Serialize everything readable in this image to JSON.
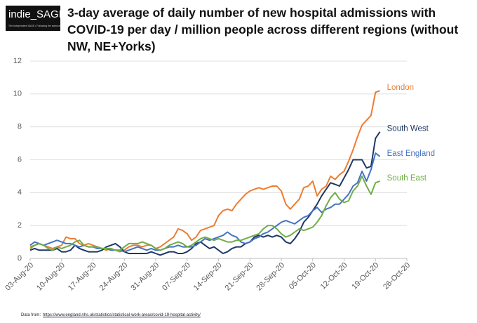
{
  "chart_data": {
    "type": "line",
    "logo": "indie_SAGE",
    "logo_tagline": "The Independent SAGE • Following the science",
    "title": "3-day average of daily number of new hospital admissions with COVID-19 per day / million people across different regions (without NW, NE+Yorks)",
    "source_label": "Data from:",
    "source_url": "https://www.england.nhs.uk/statistics/statistical-work-areas/covid-19-hospital-activity/",
    "x": [
      "2020-08-03",
      "2020-08-04",
      "2020-08-05",
      "2020-08-06",
      "2020-08-07",
      "2020-08-08",
      "2020-08-09",
      "2020-08-10",
      "2020-08-11",
      "2020-08-12",
      "2020-08-13",
      "2020-08-14",
      "2020-08-15",
      "2020-08-16",
      "2020-08-17",
      "2020-08-18",
      "2020-08-19",
      "2020-08-20",
      "2020-08-21",
      "2020-08-22",
      "2020-08-23",
      "2020-08-24",
      "2020-08-25",
      "2020-08-26",
      "2020-08-27",
      "2020-08-28",
      "2020-08-29",
      "2020-08-30",
      "2020-08-31",
      "2020-09-01",
      "2020-09-02",
      "2020-09-03",
      "2020-09-04",
      "2020-09-05",
      "2020-09-06",
      "2020-09-07",
      "2020-09-08",
      "2020-09-09",
      "2020-09-10",
      "2020-09-11",
      "2020-09-12",
      "2020-09-13",
      "2020-09-14",
      "2020-09-15",
      "2020-09-16",
      "2020-09-17",
      "2020-09-18",
      "2020-09-19",
      "2020-09-20",
      "2020-09-21",
      "2020-09-22",
      "2020-09-23",
      "2020-09-24",
      "2020-09-25",
      "2020-09-26",
      "2020-09-27",
      "2020-09-28",
      "2020-09-29",
      "2020-09-30",
      "2020-10-01",
      "2020-10-02",
      "2020-10-03",
      "2020-10-04",
      "2020-10-05",
      "2020-10-06",
      "2020-10-07",
      "2020-10-08",
      "2020-10-09",
      "2020-10-10",
      "2020-10-11",
      "2020-10-12",
      "2020-10-13",
      "2020-10-14",
      "2020-10-15",
      "2020-10-16",
      "2020-10-17",
      "2020-10-18",
      "2020-10-19",
      "2020-10-20"
    ],
    "series": [
      {
        "name": "London",
        "color": "#ed7d31",
        "values": [
          0.7,
          0.8,
          0.9,
          0.8,
          0.7,
          0.6,
          0.7,
          0.8,
          1.3,
          1.2,
          1.2,
          0.9,
          0.8,
          0.9,
          0.8,
          0.7,
          0.6,
          0.5,
          0.6,
          0.5,
          0.4,
          0.5,
          0.7,
          0.8,
          0.8,
          0.7,
          0.8,
          0.8,
          0.6,
          0.7,
          0.9,
          1.1,
          1.3,
          1.8,
          1.7,
          1.5,
          1.1,
          1.3,
          1.7,
          1.8,
          1.9,
          2.0,
          2.6,
          2.9,
          3.0,
          2.9,
          3.3,
          3.6,
          3.9,
          4.1,
          4.2,
          4.3,
          4.2,
          4.3,
          4.4,
          4.4,
          4.1,
          3.3,
          3.0,
          3.3,
          3.6,
          4.3,
          4.4,
          4.7,
          3.8,
          4.2,
          4.4,
          5.0,
          4.8,
          5.1,
          5.3,
          5.9,
          6.6,
          7.4,
          8.1,
          8.4,
          8.7,
          10.1,
          10.2
        ]
      },
      {
        "name": "South West",
        "color": "#1f3864",
        "values": [
          0.5,
          0.6,
          0.5,
          0.5,
          0.5,
          0.5,
          0.6,
          0.4,
          0.4,
          0.5,
          0.8,
          0.6,
          0.5,
          0.4,
          0.4,
          0.4,
          0.5,
          0.7,
          0.8,
          0.9,
          0.7,
          0.4,
          0.3,
          0.3,
          0.3,
          0.3,
          0.3,
          0.4,
          0.3,
          0.2,
          0.3,
          0.4,
          0.4,
          0.3,
          0.3,
          0.4,
          0.6,
          0.9,
          1.0,
          0.8,
          0.6,
          0.7,
          0.5,
          0.3,
          0.4,
          0.6,
          0.7,
          0.7,
          0.9,
          1.0,
          1.3,
          1.4,
          1.3,
          1.4,
          1.3,
          1.4,
          1.3,
          1.0,
          0.9,
          1.2,
          1.6,
          2.2,
          2.5,
          2.9,
          3.3,
          3.8,
          4.2,
          4.6,
          4.5,
          4.4,
          4.9,
          5.4,
          6.0,
          6.0,
          6.0,
          5.5,
          5.6,
          7.3,
          7.7
        ]
      },
      {
        "name": "East England",
        "color": "#4472c4",
        "values": [
          0.8,
          1.0,
          0.9,
          0.8,
          0.9,
          1.0,
          1.1,
          1.0,
          0.9,
          0.9,
          0.8,
          0.7,
          0.8,
          0.7,
          0.7,
          0.6,
          0.6,
          0.6,
          0.5,
          0.5,
          0.5,
          0.4,
          0.5,
          0.6,
          0.7,
          0.6,
          0.5,
          0.6,
          0.5,
          0.5,
          0.6,
          0.7,
          0.7,
          0.8,
          0.7,
          0.7,
          0.7,
          0.8,
          1.0,
          1.2,
          1.1,
          1.2,
          1.3,
          1.4,
          1.6,
          1.4,
          1.3,
          1.0,
          0.9,
          1.0,
          1.2,
          1.3,
          1.5,
          1.6,
          1.8,
          2.0,
          2.2,
          2.3,
          2.2,
          2.1,
          2.3,
          2.5,
          2.6,
          2.9,
          3.1,
          2.8,
          3.0,
          3.1,
          3.3,
          3.3,
          3.6,
          3.9,
          4.4,
          4.6,
          5.3,
          4.7,
          5.4,
          6.4,
          6.2
        ]
      },
      {
        "name": "South East",
        "color": "#70ad47",
        "values": [
          0.6,
          0.8,
          0.9,
          0.8,
          0.6,
          0.5,
          0.7,
          0.6,
          0.7,
          0.8,
          1.0,
          1.1,
          0.8,
          0.7,
          0.7,
          0.7,
          0.6,
          0.6,
          0.6,
          0.5,
          0.5,
          0.7,
          0.9,
          0.9,
          0.9,
          1.0,
          0.9,
          0.8,
          0.6,
          0.5,
          0.6,
          0.8,
          0.9,
          1.0,
          0.9,
          0.7,
          0.8,
          1.0,
          1.2,
          1.3,
          1.2,
          1.1,
          1.2,
          1.1,
          1.0,
          1.0,
          1.1,
          1.1,
          1.2,
          1.3,
          1.4,
          1.5,
          1.8,
          2.0,
          2.0,
          1.8,
          1.5,
          1.3,
          1.4,
          1.6,
          1.8,
          1.7,
          1.8,
          1.9,
          2.2,
          2.6,
          3.2,
          3.7,
          4.0,
          3.6,
          3.4,
          3.5,
          4.1,
          4.4,
          5.0,
          4.4,
          3.9,
          4.6,
          4.7
        ]
      }
    ],
    "xlim": [
      "2020-08-03",
      "2020-10-26"
    ],
    "xticks": [
      {
        "value": "2020-08-03",
        "label": "03-Aug-20"
      },
      {
        "value": "2020-08-10",
        "label": "10-Aug-20"
      },
      {
        "value": "2020-08-17",
        "label": "17-Aug-20"
      },
      {
        "value": "2020-08-24",
        "label": "24-Aug-20"
      },
      {
        "value": "2020-08-31",
        "label": "31-Aug-20"
      },
      {
        "value": "2020-09-07",
        "label": "07-Sep-20"
      },
      {
        "value": "2020-09-14",
        "label": "14-Sep-20"
      },
      {
        "value": "2020-09-21",
        "label": "21-Sep-20"
      },
      {
        "value": "2020-09-28",
        "label": "28-Sep-20"
      },
      {
        "value": "2020-10-05",
        "label": "05-Oct-20"
      },
      {
        "value": "2020-10-12",
        "label": "12-Oct-20"
      },
      {
        "value": "2020-10-19",
        "label": "19-Oct-20"
      },
      {
        "value": "2020-10-26",
        "label": "26-Oct-20"
      }
    ],
    "ylim": [
      0,
      12
    ],
    "yticks": [
      0,
      2,
      4,
      6,
      8,
      10,
      12
    ],
    "grid": true
  }
}
